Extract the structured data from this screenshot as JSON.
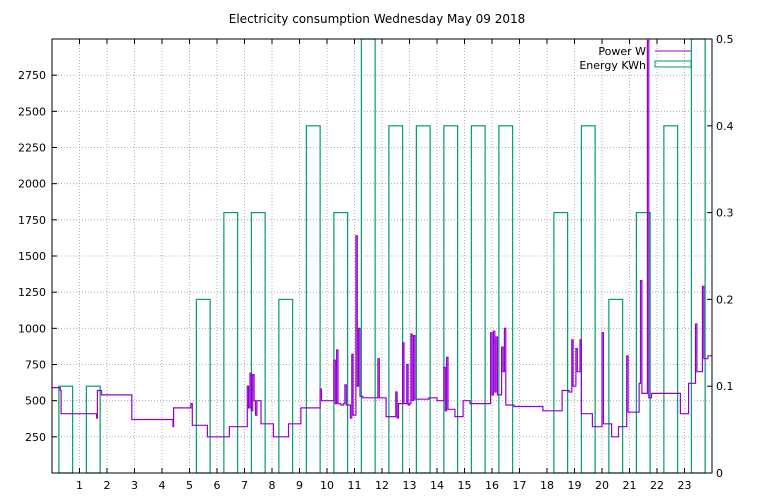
{
  "chart_data": {
    "type": "bar",
    "title": "Electricity consumption Wednesday May 09 2018",
    "xlabel": "",
    "ylabel": "",
    "y2label": "",
    "xlim": [
      0,
      24
    ],
    "ylim": [
      0,
      3000
    ],
    "y2lim": [
      0,
      0.5
    ],
    "x_ticks": [
      1,
      2,
      3,
      4,
      5,
      6,
      7,
      8,
      9,
      10,
      11,
      12,
      13,
      14,
      15,
      16,
      17,
      18,
      19,
      20,
      21,
      22,
      23
    ],
    "y_ticks": [
      250,
      500,
      750,
      1000,
      1250,
      1500,
      1750,
      2000,
      2250,
      2500,
      2750
    ],
    "y2_ticks": [
      0,
      0.1,
      0.2,
      0.3,
      0.4,
      0.5
    ],
    "grid": true,
    "legend_position": "top-right",
    "colors": {
      "power": "#9400d3",
      "energy": "#009e73"
    },
    "series": [
      {
        "name": "Power W",
        "kind": "step-line",
        "axis": "y",
        "points": [
          [
            0.0,
            590
          ],
          [
            0.3,
            570
          ],
          [
            0.33,
            410
          ],
          [
            1.6,
            410
          ],
          [
            1.62,
            380
          ],
          [
            1.65,
            570
          ],
          [
            1.8,
            540
          ],
          [
            2.85,
            540
          ],
          [
            2.9,
            370
          ],
          [
            4.35,
            370
          ],
          [
            4.4,
            320
          ],
          [
            4.42,
            450
          ],
          [
            4.9,
            450
          ],
          [
            5.05,
            480
          ],
          [
            5.1,
            330
          ],
          [
            5.6,
            330
          ],
          [
            5.65,
            250
          ],
          [
            6.4,
            250
          ],
          [
            6.45,
            320
          ],
          [
            7.0,
            320
          ],
          [
            7.1,
            600
          ],
          [
            7.15,
            450
          ],
          [
            7.2,
            690
          ],
          [
            7.25,
            430
          ],
          [
            7.3,
            680
          ],
          [
            7.35,
            500
          ],
          [
            7.4,
            400
          ],
          [
            7.45,
            500
          ],
          [
            7.55,
            500
          ],
          [
            7.6,
            340
          ],
          [
            8.0,
            340
          ],
          [
            8.05,
            250
          ],
          [
            8.5,
            250
          ],
          [
            8.6,
            340
          ],
          [
            8.9,
            340
          ],
          [
            9.05,
            450
          ],
          [
            9.7,
            450
          ],
          [
            9.75,
            580
          ],
          [
            9.8,
            500
          ],
          [
            10.2,
            500
          ],
          [
            10.25,
            780
          ],
          [
            10.3,
            480
          ],
          [
            10.35,
            850
          ],
          [
            10.4,
            480
          ],
          [
            10.5,
            470
          ],
          [
            10.6,
            480
          ],
          [
            10.65,
            610
          ],
          [
            10.7,
            470
          ],
          [
            10.8,
            470
          ],
          [
            10.85,
            380
          ],
          [
            10.9,
            820
          ],
          [
            10.95,
            400
          ],
          [
            11.05,
            1640
          ],
          [
            11.1,
            600
          ],
          [
            11.15,
            1000
          ],
          [
            11.2,
            530
          ],
          [
            11.3,
            520
          ],
          [
            11.8,
            520
          ],
          [
            11.85,
            790
          ],
          [
            11.9,
            520
          ],
          [
            12.1,
            520
          ],
          [
            12.15,
            390
          ],
          [
            12.4,
            390
          ],
          [
            12.5,
            560
          ],
          [
            12.55,
            380
          ],
          [
            12.6,
            480
          ],
          [
            12.7,
            480
          ],
          [
            12.75,
            900
          ],
          [
            12.8,
            480
          ],
          [
            12.9,
            750
          ],
          [
            12.95,
            470
          ],
          [
            13.0,
            480
          ],
          [
            13.05,
            960
          ],
          [
            13.1,
            500
          ],
          [
            13.15,
            950
          ],
          [
            13.2,
            510
          ],
          [
            13.6,
            510
          ],
          [
            13.7,
            520
          ],
          [
            14.0,
            500
          ],
          [
            14.2,
            500
          ],
          [
            14.25,
            730
          ],
          [
            14.3,
            430
          ],
          [
            14.35,
            800
          ],
          [
            14.4,
            440
          ],
          [
            14.6,
            440
          ],
          [
            14.65,
            390
          ],
          [
            14.9,
            390
          ],
          [
            14.95,
            500
          ],
          [
            15.2,
            480
          ],
          [
            15.9,
            480
          ],
          [
            15.95,
            970
          ],
          [
            16.0,
            540
          ],
          [
            16.05,
            980
          ],
          [
            16.1,
            560
          ],
          [
            16.15,
            940
          ],
          [
            16.2,
            540
          ],
          [
            16.35,
            870
          ],
          [
            16.4,
            700
          ],
          [
            16.45,
            1000
          ],
          [
            16.5,
            470
          ],
          [
            16.8,
            460
          ],
          [
            17.8,
            460
          ],
          [
            17.85,
            430
          ],
          [
            18.5,
            430
          ],
          [
            18.55,
            570
          ],
          [
            18.8,
            560
          ],
          [
            18.9,
            920
          ],
          [
            18.95,
            600
          ],
          [
            19.05,
            860
          ],
          [
            19.1,
            700
          ],
          [
            19.2,
            920
          ],
          [
            19.25,
            410
          ],
          [
            19.6,
            410
          ],
          [
            19.65,
            320
          ],
          [
            19.95,
            320
          ],
          [
            20.0,
            970
          ],
          [
            20.05,
            340
          ],
          [
            20.3,
            340
          ],
          [
            20.35,
            250
          ],
          [
            20.55,
            250
          ],
          [
            20.6,
            320
          ],
          [
            20.85,
            320
          ],
          [
            20.9,
            810
          ],
          [
            20.95,
            420
          ],
          [
            21.3,
            420
          ],
          [
            21.35,
            620
          ],
          [
            21.4,
            1330
          ],
          [
            21.45,
            550
          ],
          [
            21.6,
            550
          ],
          [
            21.65,
            2990
          ],
          [
            21.7,
            520
          ],
          [
            21.8,
            550
          ],
          [
            22.8,
            550
          ],
          [
            22.85,
            410
          ],
          [
            23.1,
            410
          ],
          [
            23.15,
            620
          ],
          [
            23.3,
            620
          ],
          [
            23.4,
            1030
          ],
          [
            23.45,
            700
          ],
          [
            23.6,
            700
          ],
          [
            23.65,
            1290
          ],
          [
            23.7,
            790
          ],
          [
            23.85,
            810
          ],
          [
            24.0,
            810
          ]
        ]
      },
      {
        "name": "Energy KWh",
        "kind": "boxes",
        "axis": "y2",
        "bars": [
          [
            0.0,
            0.1
          ],
          [
            1.0,
            0.1
          ],
          [
            5.0,
            0.2
          ],
          [
            6.0,
            0.3
          ],
          [
            7.0,
            0.3
          ],
          [
            8.0,
            0.2
          ],
          [
            9.0,
            0.4
          ],
          [
            10.0,
            0.3
          ],
          [
            11.0,
            0.5
          ],
          [
            12.0,
            0.4
          ],
          [
            13.0,
            0.4
          ],
          [
            14.0,
            0.4
          ],
          [
            15.0,
            0.4
          ],
          [
            16.0,
            0.4
          ],
          [
            18.0,
            0.3
          ],
          [
            19.0,
            0.4
          ],
          [
            20.0,
            0.2
          ],
          [
            21.0,
            0.3
          ],
          [
            22.0,
            0.4
          ],
          [
            23.0,
            0.5
          ]
        ]
      }
    ]
  }
}
